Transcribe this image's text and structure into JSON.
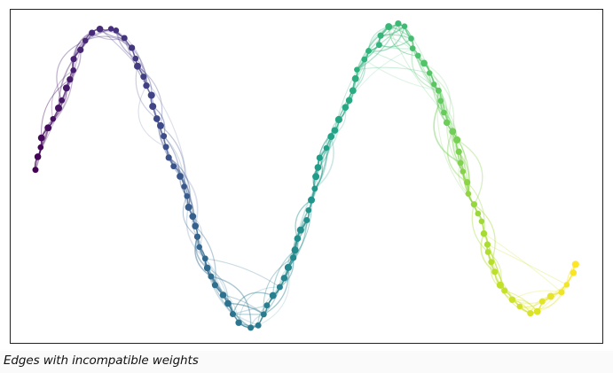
{
  "caption": "Edges with incompatible weights",
  "graph": {
    "colormap": [
      "#440154",
      "#482878",
      "#3e4989",
      "#31688e",
      "#26828e",
      "#1f9e89",
      "#35b779",
      "#6ece58",
      "#b5de2b",
      "#fde725"
    ],
    "node_count": 120,
    "layout": "sine-like chain"
  }
}
